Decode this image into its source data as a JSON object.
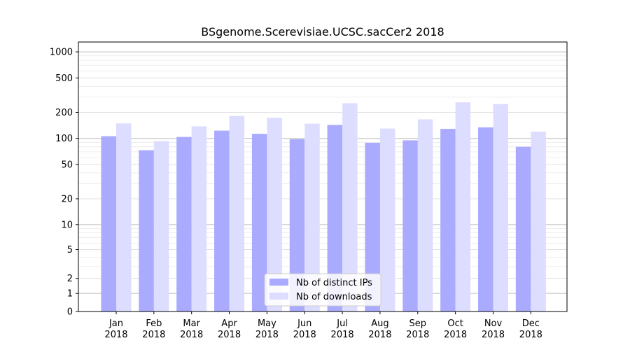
{
  "chart_data": {
    "type": "bar",
    "title": "BSgenome.Scerevisiae.UCSC.sacCer2 2018",
    "xlabel": "",
    "ylabel": "",
    "y_scale": "symlog",
    "ylim": [
      0,
      1300
    ],
    "grid": true,
    "legend_position": "lower-center",
    "categories": [
      [
        "Jan",
        "2018"
      ],
      [
        "Feb",
        "2018"
      ],
      [
        "Mar",
        "2018"
      ],
      [
        "Apr",
        "2018"
      ],
      [
        "May",
        "2018"
      ],
      [
        "Jun",
        "2018"
      ],
      [
        "Jul",
        "2018"
      ],
      [
        "Aug",
        "2018"
      ],
      [
        "Sep",
        "2018"
      ],
      [
        "Oct",
        "2018"
      ],
      [
        "Nov",
        "2018"
      ],
      [
        "Dec",
        "2018"
      ]
    ],
    "y_ticks": [
      {
        "value": 0,
        "label": "0"
      },
      {
        "value": 1,
        "label": "1"
      },
      {
        "value": 2,
        "label": "2"
      },
      {
        "value": 5,
        "label": "5"
      },
      {
        "value": 10,
        "label": "10"
      },
      {
        "value": 20,
        "label": "20"
      },
      {
        "value": 50,
        "label": "50"
      },
      {
        "value": 100,
        "label": "100"
      },
      {
        "value": 200,
        "label": "200"
      },
      {
        "value": 500,
        "label": "500"
      },
      {
        "value": 1000,
        "label": "1000"
      }
    ],
    "series": [
      {
        "name": "Nb of distinct IPs",
        "color": "#aaaaff",
        "values": [
          106,
          73,
          104,
          123,
          113,
          98,
          143,
          89,
          95,
          129,
          134,
          80
        ]
      },
      {
        "name": "Nb of downloads",
        "color": "#ddddff",
        "values": [
          149,
          93,
          138,
          182,
          173,
          148,
          255,
          130,
          166,
          261,
          249,
          120
        ]
      }
    ]
  }
}
